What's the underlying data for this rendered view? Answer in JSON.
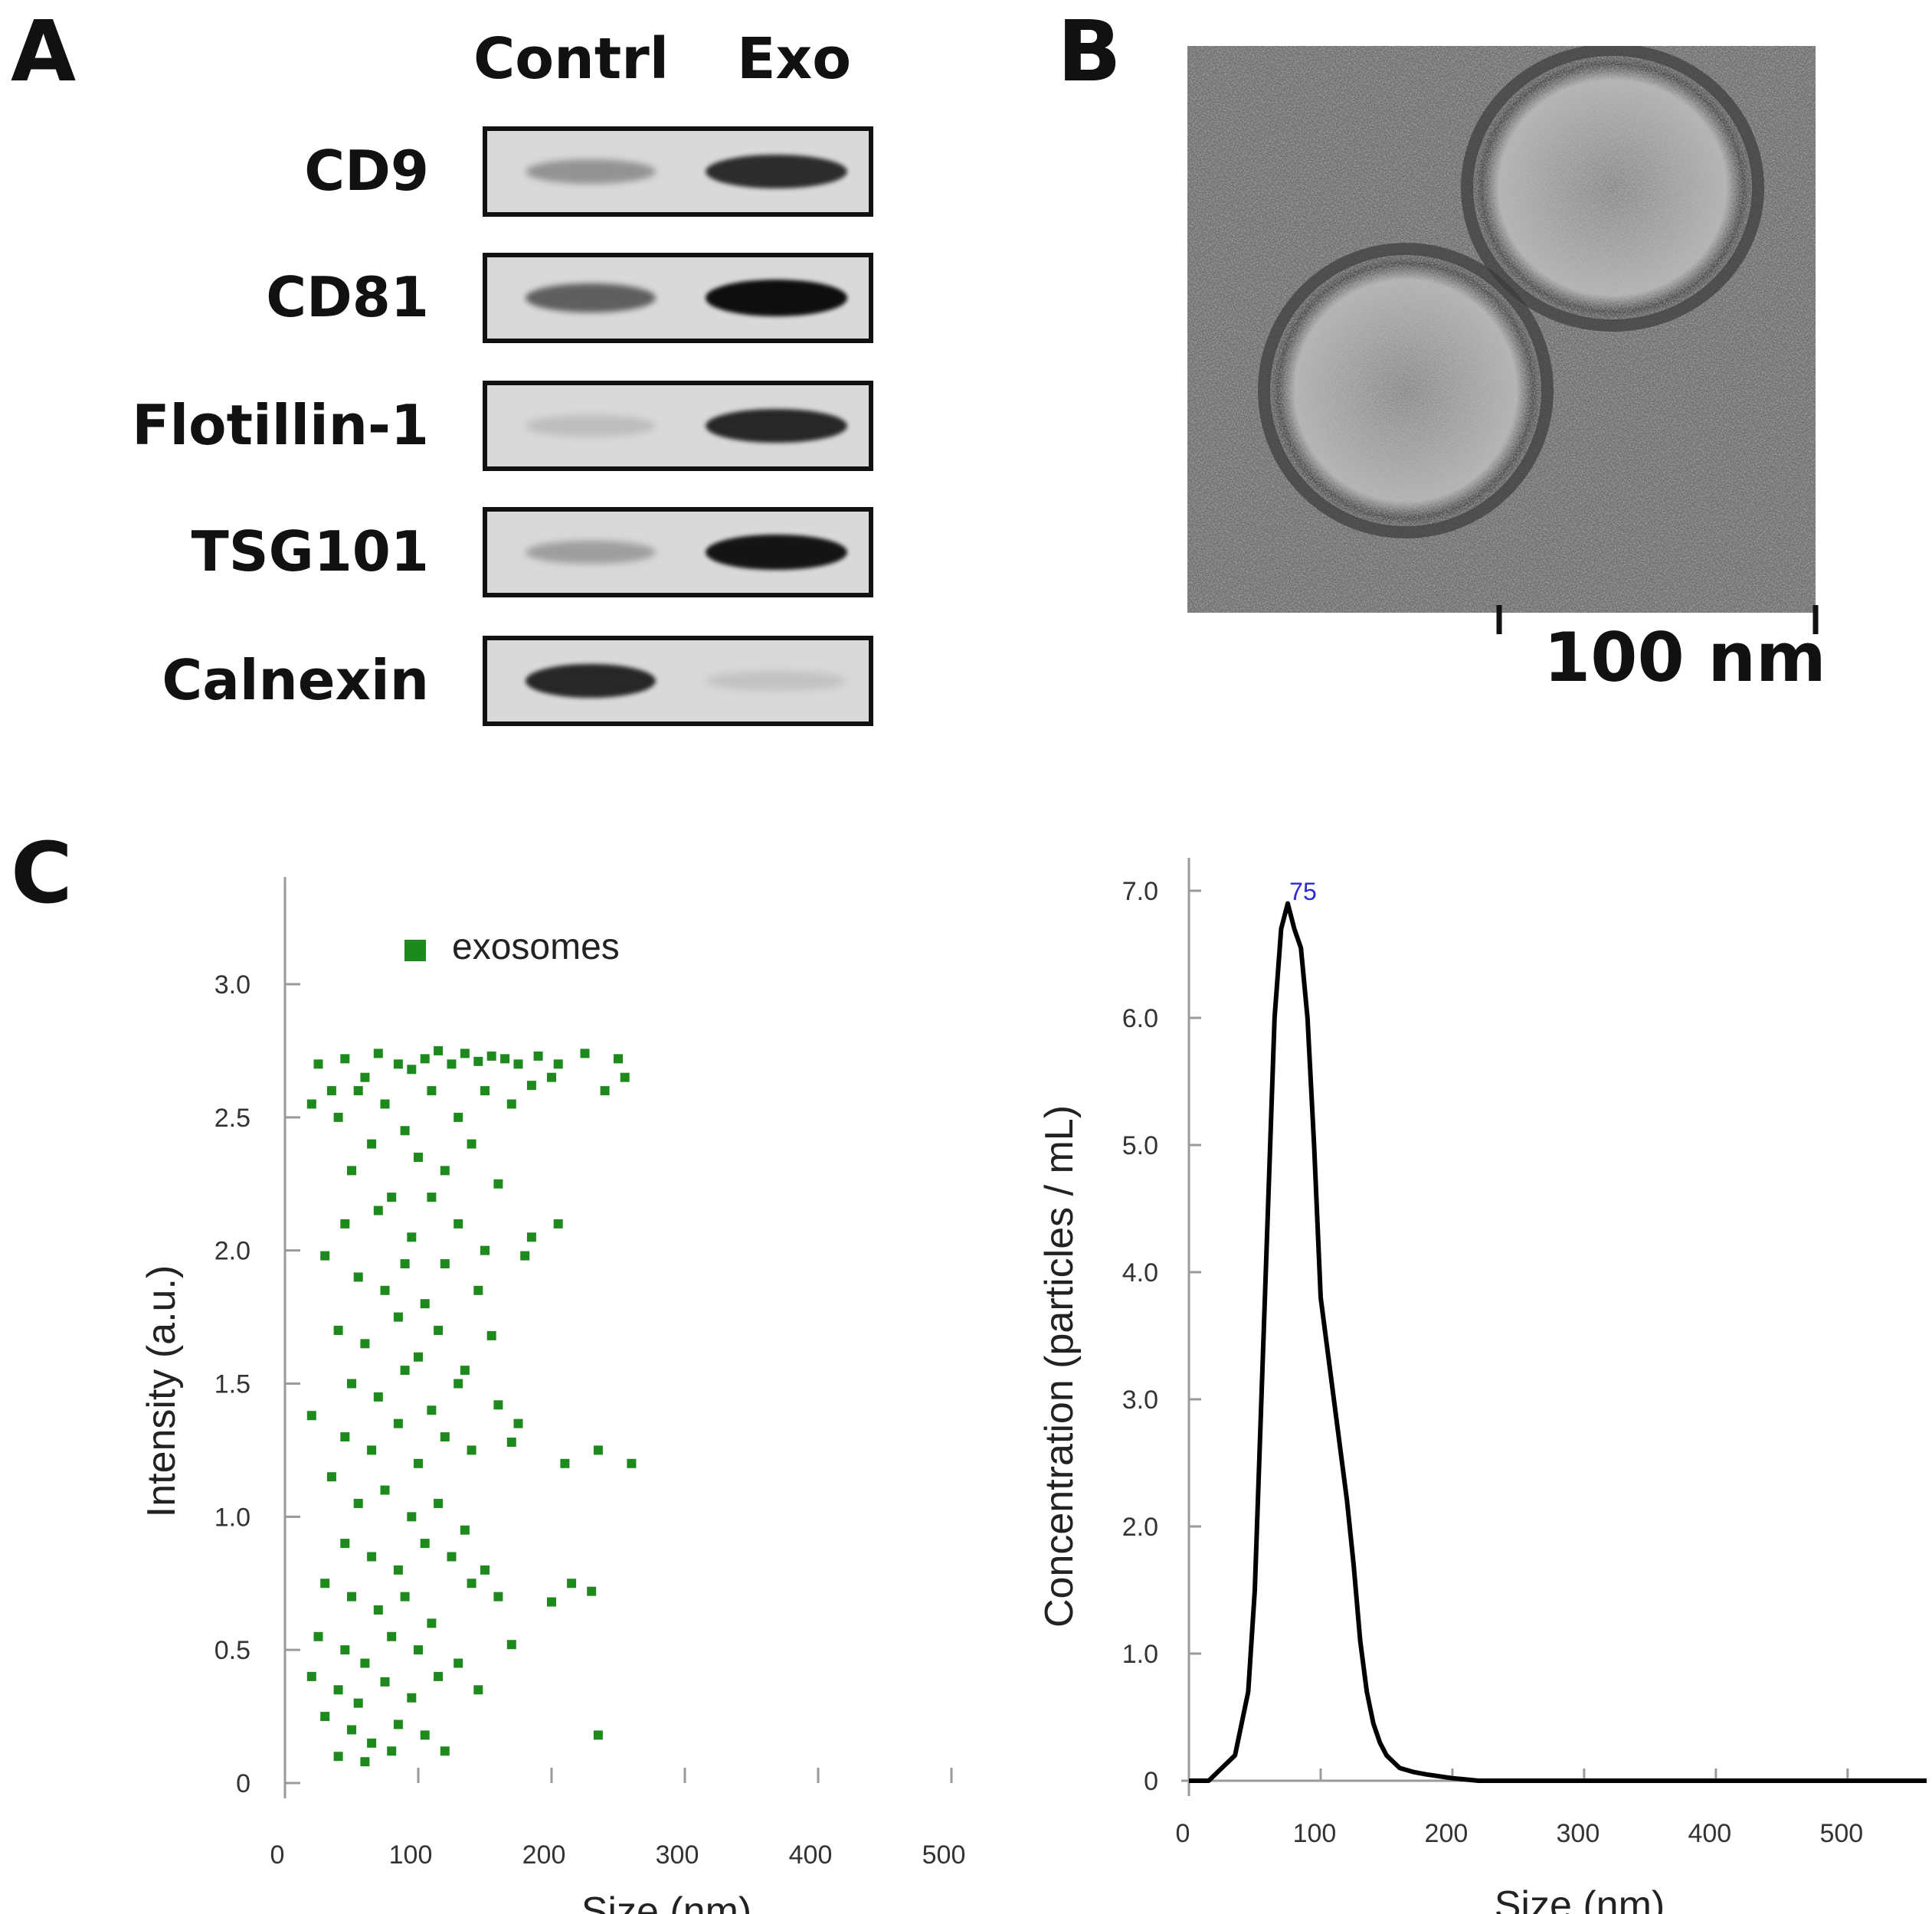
{
  "panels": {
    "a": "A",
    "b": "B",
    "c": "C"
  },
  "western_blot": {
    "lanes": [
      "Contrl",
      "Exo"
    ],
    "bands": [
      {
        "label": "CD9",
        "contrl": 0.28,
        "exo": 0.82
      },
      {
        "label": "CD81",
        "contrl": 0.55,
        "exo": 0.98
      },
      {
        "label": "Flotillin-1",
        "contrl": 0.06,
        "exo": 0.85
      },
      {
        "label": "TSG101",
        "contrl": 0.22,
        "exo": 0.95
      },
      {
        "label": "Calnexin",
        "contrl": 0.85,
        "exo": 0.03
      }
    ]
  },
  "tem": {
    "scale_bar_label": "100 nm"
  },
  "chart_data": [
    {
      "type": "scatter",
      "title": "",
      "xlabel": "Size (nm)",
      "ylabel": "Intensity (a.u.)",
      "xlim": [
        0,
        500
      ],
      "ylim": [
        0,
        3.0
      ],
      "xticks": [
        "0",
        "100",
        "200",
        "300",
        "400",
        "500"
      ],
      "yticks": [
        "0",
        "0.5",
        "1.0",
        "1.5",
        "2.0",
        "2.5",
        "3.0"
      ],
      "legend": [
        "exosomes"
      ],
      "series": [
        {
          "name": "exosomes",
          "color": "#1e8a1e",
          "points": [
            [
              25,
              2.7
            ],
            [
              35,
              2.6
            ],
            [
              45,
              2.72
            ],
            [
              60,
              2.65
            ],
            [
              70,
              2.74
            ],
            [
              85,
              2.7
            ],
            [
              95,
              2.68
            ],
            [
              105,
              2.72
            ],
            [
              115,
              2.75
            ],
            [
              125,
              2.7
            ],
            [
              135,
              2.74
            ],
            [
              145,
              2.71
            ],
            [
              155,
              2.73
            ],
            [
              165,
              2.72
            ],
            [
              175,
              2.7
            ],
            [
              190,
              2.73
            ],
            [
              205,
              2.7
            ],
            [
              225,
              2.74
            ],
            [
              250,
              2.72
            ],
            [
              20,
              2.55
            ],
            [
              40,
              2.5
            ],
            [
              55,
              2.6
            ],
            [
              75,
              2.55
            ],
            [
              90,
              2.45
            ],
            [
              110,
              2.6
            ],
            [
              130,
              2.5
            ],
            [
              150,
              2.6
            ],
            [
              170,
              2.55
            ],
            [
              185,
              2.62
            ],
            [
              200,
              2.65
            ],
            [
              240,
              2.6
            ],
            [
              255,
              2.65
            ],
            [
              50,
              2.3
            ],
            [
              65,
              2.4
            ],
            [
              80,
              2.2
            ],
            [
              100,
              2.35
            ],
            [
              120,
              2.3
            ],
            [
              140,
              2.4
            ],
            [
              160,
              2.25
            ],
            [
              45,
              2.1
            ],
            [
              70,
              2.15
            ],
            [
              95,
              2.05
            ],
            [
              110,
              2.2
            ],
            [
              130,
              2.1
            ],
            [
              150,
              2.0
            ],
            [
              185,
              2.05
            ],
            [
              205,
              2.1
            ],
            [
              30,
              1.98
            ],
            [
              55,
              1.9
            ],
            [
              75,
              1.85
            ],
            [
              90,
              1.95
            ],
            [
              105,
              1.8
            ],
            [
              120,
              1.95
            ],
            [
              145,
              1.85
            ],
            [
              180,
              1.98
            ],
            [
              40,
              1.7
            ],
            [
              60,
              1.65
            ],
            [
              85,
              1.75
            ],
            [
              100,
              1.6
            ],
            [
              115,
              1.7
            ],
            [
              135,
              1.55
            ],
            [
              155,
              1.68
            ],
            [
              50,
              1.5
            ],
            [
              70,
              1.45
            ],
            [
              90,
              1.55
            ],
            [
              110,
              1.4
            ],
            [
              130,
              1.5
            ],
            [
              160,
              1.42
            ],
            [
              175,
              1.35
            ],
            [
              20,
              1.38
            ],
            [
              45,
              1.3
            ],
            [
              65,
              1.25
            ],
            [
              85,
              1.35
            ],
            [
              100,
              1.2
            ],
            [
              120,
              1.3
            ],
            [
              140,
              1.25
            ],
            [
              170,
              1.28
            ],
            [
              210,
              1.2
            ],
            [
              235,
              1.25
            ],
            [
              260,
              1.2
            ],
            [
              35,
              1.15
            ],
            [
              55,
              1.05
            ],
            [
              75,
              1.1
            ],
            [
              95,
              1.0
            ],
            [
              115,
              1.05
            ],
            [
              135,
              0.95
            ],
            [
              45,
              0.9
            ],
            [
              65,
              0.85
            ],
            [
              85,
              0.8
            ],
            [
              105,
              0.9
            ],
            [
              125,
              0.85
            ],
            [
              150,
              0.8
            ],
            [
              30,
              0.75
            ],
            [
              50,
              0.7
            ],
            [
              70,
              0.65
            ],
            [
              90,
              0.7
            ],
            [
              110,
              0.6
            ],
            [
              140,
              0.75
            ],
            [
              160,
              0.7
            ],
            [
              200,
              0.68
            ],
            [
              215,
              0.75
            ],
            [
              230,
              0.72
            ],
            [
              25,
              0.55
            ],
            [
              45,
              0.5
            ],
            [
              60,
              0.45
            ],
            [
              80,
              0.55
            ],
            [
              100,
              0.5
            ],
            [
              130,
              0.45
            ],
            [
              170,
              0.52
            ],
            [
              20,
              0.4
            ],
            [
              40,
              0.35
            ],
            [
              55,
              0.3
            ],
            [
              75,
              0.38
            ],
            [
              95,
              0.32
            ],
            [
              115,
              0.4
            ],
            [
              145,
              0.35
            ],
            [
              30,
              0.25
            ],
            [
              50,
              0.2
            ],
            [
              65,
              0.15
            ],
            [
              85,
              0.22
            ],
            [
              105,
              0.18
            ],
            [
              120,
              0.12
            ],
            [
              235,
              0.18
            ],
            [
              40,
              0.1
            ],
            [
              60,
              0.08
            ],
            [
              80,
              0.12
            ]
          ]
        }
      ]
    },
    {
      "type": "line",
      "title": "",
      "xlabel": "Size (nm)",
      "ylabel": "Concentration (particles / mL)",
      "xlim": [
        0,
        560
      ],
      "ylim": [
        0,
        7.0
      ],
      "xticks": [
        "0",
        "100",
        "200",
        "300",
        "400",
        "500"
      ],
      "yticks": [
        "0",
        "1.0",
        "2.0",
        "3.0",
        "4.0",
        "5.0",
        "6.0",
        "7.0"
      ],
      "peak_label": "75",
      "peak_x": 75,
      "series": [
        {
          "name": "concentration",
          "color": "#000000",
          "x": [
            0,
            15,
            25,
            35,
            45,
            50,
            55,
            60,
            65,
            70,
            75,
            80,
            85,
            90,
            95,
            100,
            105,
            110,
            115,
            120,
            125,
            130,
            135,
            140,
            145,
            150,
            155,
            160,
            170,
            180,
            200,
            220,
            250,
            300,
            400,
            560
          ],
          "y": [
            0,
            0,
            0.1,
            0.2,
            0.7,
            1.5,
            3.0,
            4.5,
            6.0,
            6.7,
            6.9,
            6.7,
            6.55,
            6.0,
            5.0,
            3.8,
            3.4,
            3.0,
            2.6,
            2.2,
            1.7,
            1.1,
            0.7,
            0.45,
            0.3,
            0.2,
            0.15,
            0.1,
            0.07,
            0.05,
            0.02,
            0,
            0,
            0,
            0,
            0
          ]
        }
      ]
    }
  ]
}
